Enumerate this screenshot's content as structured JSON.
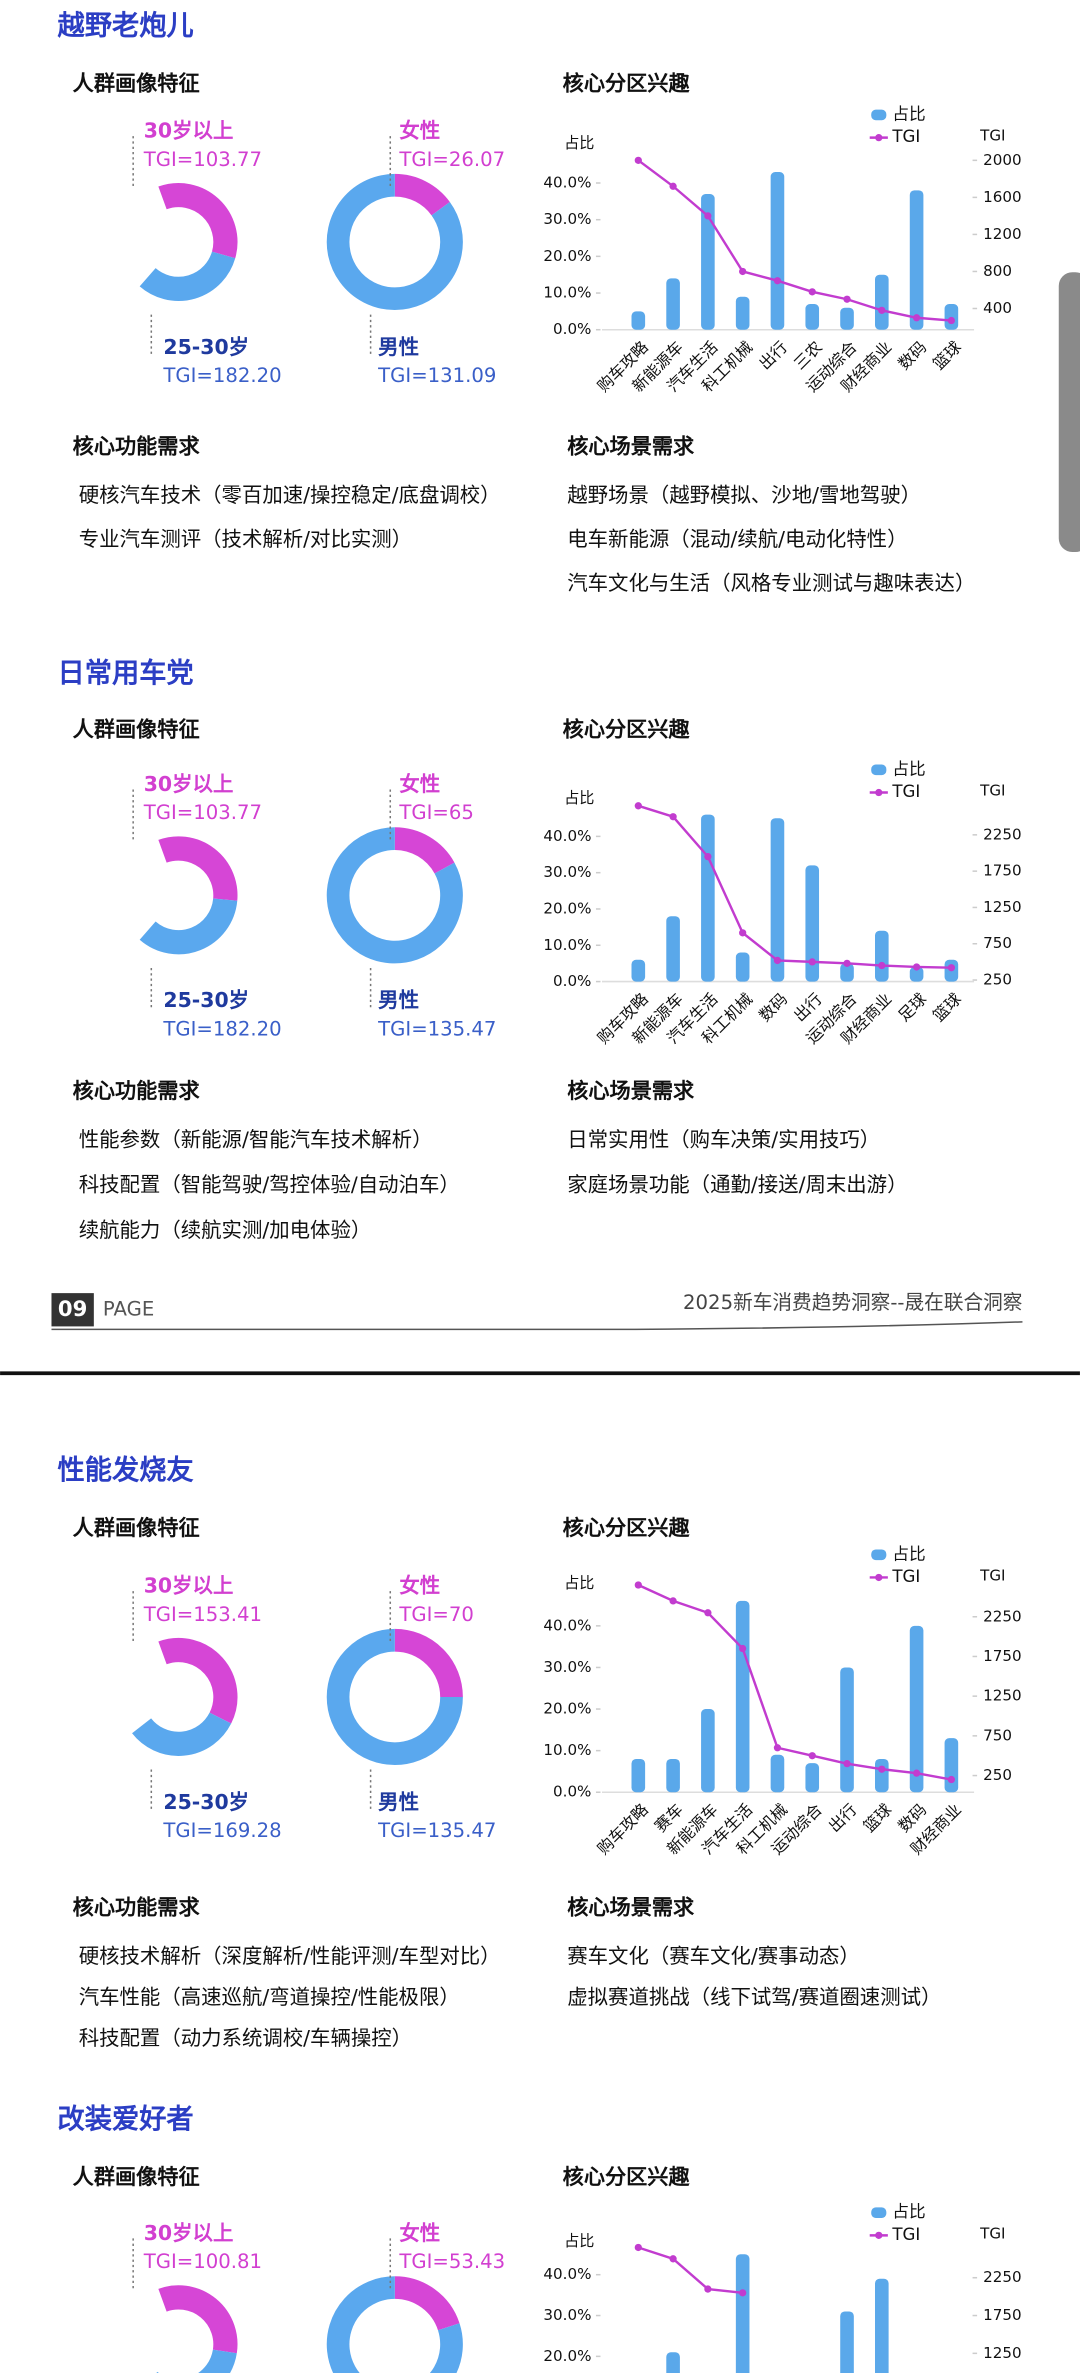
{
  "sections": [
    {
      "title": "越野老炮儿",
      "portrait_heading": "人群画像特征",
      "interest_heading": "核心分区兴趣",
      "function_heading": "核心功能需求",
      "function_items": [
        "硬核汽车技术（零百加速/操控稳定/底盘调校）",
        "专业汽车测评（技术解析/对比实测）"
      ],
      "scene_heading": "核心场景需求",
      "scene_items": [
        "越野场景（越野模拟、沙地/雪地驾驶）",
        "电车新能源（混动/续航/电动化特性）",
        "汽车文化与生活（风格专业测试与趣味表达）"
      ]
    },
    {
      "title": "日常用车党",
      "portrait_heading": "人群画像特征",
      "interest_heading": "核心分区兴趣",
      "function_heading": "核心功能需求",
      "function_items": [
        "性能参数（新能源/智能汽车技术解析）",
        "科技配置（智能驾驶/驾控体验/自动泊车）",
        "续航能力（续航实测/加电体验）"
      ],
      "scene_heading": "核心场景需求",
      "scene_items": [
        "日常实用性（购车决策/实用技巧）",
        "家庭场景功能（通勤/接送/周末出游）"
      ]
    },
    {
      "title": "性能发烧友",
      "portrait_heading": "人群画像特征",
      "interest_heading": "核心分区兴趣",
      "function_heading": "核心功能需求",
      "function_items": [
        "硬核技术解析（深度解析/性能评测/车型对比）",
        "汽车性能（高速巡航/弯道操控/性能极限）",
        "科技配置（动力系统调校/车辆操控）"
      ],
      "scene_heading": "核心场景需求",
      "scene_items": [
        "赛车文化（赛车文化/赛事动态）",
        "虚拟赛道挑战（线下试驾/赛道圈速测试）"
      ]
    },
    {
      "title": "改装爱好者",
      "portrait_heading": "人群画像特征",
      "interest_heading": "核心分区兴趣"
    }
  ],
  "footer": {
    "page_number": "09",
    "page_label": "PAGE",
    "report": "2025新车消费趋势洞察--晟在联合洞察"
  },
  "chart_data": [
    {
      "type": "donut",
      "categories": [
        "30岁以上",
        "25-30岁"
      ],
      "values": [
        35,
        32
      ],
      "colors": [
        "#d646d6",
        "#5aa8ee"
      ],
      "tgi_labels": [
        "TGI=103.77",
        "TGI=182.20"
      ]
    },
    {
      "type": "donut",
      "categories": [
        "女性",
        "男性"
      ],
      "values": [
        15,
        85
      ],
      "colors": [
        "#d646d6",
        "#5aa8ee"
      ],
      "tgi_labels": [
        "TGI=26.07",
        "TGI=131.09"
      ]
    },
    {
      "type": "bar_line",
      "y_label": "占比",
      "y2_label": "TGI",
      "categories": [
        "购车攻略",
        "新能源车",
        "汽车生活",
        "科工机械",
        "出行",
        "三农",
        "运动综合",
        "财经商业",
        "数码",
        "篮球"
      ],
      "series": [
        {
          "name": "占比",
          "color": "#5aa8ea",
          "values": [
            5,
            14,
            37,
            9,
            43,
            7,
            6,
            15,
            38,
            7
          ]
        },
        {
          "name": "TGI",
          "color": "#c23ccf",
          "axis": "y2",
          "values": [
            2000,
            1720,
            1400,
            800,
            700,
            580,
            500,
            380,
            300,
            270
          ]
        }
      ],
      "ylim": [
        0,
        48
      ],
      "yticks": [
        {
          "value": 0,
          "label": "0.0%"
        },
        {
          "value": 10,
          "label": "10.0%"
        },
        {
          "value": 20,
          "label": "20.0%"
        },
        {
          "value": 30,
          "label": "30.0%"
        },
        {
          "value": 40,
          "label": "40.0%"
        }
      ],
      "y2lim": [
        171,
        2072
      ],
      "y2ticks": [
        400,
        800,
        1200,
        1600,
        2000
      ]
    },
    {
      "type": "donut",
      "categories": [
        "30岁以上",
        "25-30岁"
      ],
      "values": [
        32,
        35
      ],
      "colors": [
        "#d646d6",
        "#5aa8ee"
      ],
      "tgi_labels": [
        "TGI=103.77",
        "TGI=182.20"
      ]
    },
    {
      "type": "donut",
      "categories": [
        "女性",
        "男性"
      ],
      "values": [
        17,
        83
      ],
      "colors": [
        "#d646d6",
        "#5aa8ee"
      ],
      "tgi_labels": [
        "TGI=65",
        "TGI=135.47"
      ]
    },
    {
      "type": "bar_line",
      "y_label": "占比",
      "y2_label": "TGI",
      "categories": [
        "购车攻略",
        "新能源车",
        "汽车生活",
        "科工机械",
        "数码",
        "出行",
        "运动综合",
        "财经商业",
        "足球",
        "篮球"
      ],
      "series": [
        {
          "name": "占比",
          "color": "#5aa8ea",
          "values": [
            6,
            18,
            46,
            8,
            45,
            32,
            5,
            14,
            4,
            6
          ]
        },
        {
          "name": "TGI",
          "color": "#c23ccf",
          "axis": "y2",
          "values": [
            2650,
            2500,
            1950,
            900,
            520,
            500,
            480,
            450,
            430,
            420
          ]
        }
      ],
      "ylim": [
        0,
        50
      ],
      "yticks": [
        {
          "value": 0,
          "label": "0.0%"
        },
        {
          "value": 10,
          "label": "10.0%"
        },
        {
          "value": 20,
          "label": "20.0%"
        },
        {
          "value": 30,
          "label": "30.0%"
        },
        {
          "value": 40,
          "label": "40.0%"
        }
      ],
      "y2lim": [
        229,
        2729
      ],
      "y2ticks": [
        250,
        750,
        1250,
        1750,
        2250
      ]
    },
    {
      "type": "donut",
      "categories": [
        "30岁以上",
        "25-30岁"
      ],
      "values": [
        38,
        32
      ],
      "colors": [
        "#d646d6",
        "#5aa8ee"
      ],
      "tgi_labels": [
        "TGI=153.41",
        "TGI=169.28"
      ]
    },
    {
      "type": "donut",
      "categories": [
        "女性",
        "男性"
      ],
      "values": [
        25,
        75
      ],
      "colors": [
        "#d646d6",
        "#5aa8ee"
      ],
      "tgi_labels": [
        "TGI=70",
        "TGI=135.47"
      ]
    },
    {
      "type": "bar_line",
      "y_label": "占比",
      "y2_label": "TGI",
      "categories": [
        "购车攻略",
        "赛车",
        "新能源车",
        "汽车生活",
        "科工机械",
        "运动综合",
        "出行",
        "篮球",
        "数码",
        "财经商业"
      ],
      "series": [
        {
          "name": "占比",
          "color": "#5aa8ea",
          "values": [
            8,
            8,
            20,
            46,
            9,
            7,
            30,
            8,
            40,
            13
          ]
        },
        {
          "name": "TGI",
          "color": "#c23ccf",
          "axis": "y2",
          "values": [
            2650,
            2450,
            2300,
            1850,
            600,
            500,
            400,
            330,
            280,
            200
          ]
        }
      ],
      "ylim": [
        0,
        52
      ],
      "yticks": [
        {
          "value": 0,
          "label": "0.0%"
        },
        {
          "value": 10,
          "label": "10.0%"
        },
        {
          "value": 20,
          "label": "20.0%"
        },
        {
          "value": 30,
          "label": "30.0%"
        },
        {
          "value": 40,
          "label": "40.0%"
        }
      ],
      "y2lim": [
        40,
        2764
      ],
      "y2ticks": [
        250,
        750,
        1250,
        1750,
        2250
      ]
    },
    {
      "type": "donut",
      "categories": [
        "30岁以上",
        null
      ],
      "values": [
        33,
        33
      ],
      "colors": [
        "#d646d6",
        "#5aa8ee"
      ],
      "tgi_labels": [
        "TGI=100.81",
        null
      ]
    },
    {
      "type": "donut",
      "categories": [
        "女性",
        null
      ],
      "values": [
        20,
        80
      ],
      "colors": [
        "#d646d6",
        "#5aa8ee"
      ],
      "tgi_labels": [
        "TGI=53.43",
        null
      ]
    },
    {
      "type": "bar_line",
      "y_label": "占比",
      "y2_label": "TGI",
      "categories": [
        null,
        null,
        null,
        null,
        null,
        null,
        null,
        null,
        null,
        null
      ],
      "series": [
        {
          "name": "占比",
          "color": "#5aa8ea",
          "values": [
            null,
            21,
            null,
            45,
            null,
            null,
            31,
            39,
            null,
            null
          ]
        },
        {
          "name": "TGI",
          "color": "#c23ccf",
          "axis": "y2",
          "values": [
            2650,
            2500,
            2100,
            2050,
            null,
            null,
            null,
            null,
            null,
            null
          ]
        }
      ],
      "ylim": [
        0,
        52
      ],
      "yticks": [
        {
          "value": 20,
          "label": "20.0%"
        },
        {
          "value": 30,
          "label": "30.0%"
        },
        {
          "value": 40,
          "label": "40.0%"
        }
      ],
      "y2lim": [
        130,
        2938
      ],
      "y2ticks": [
        1250,
        1750,
        2250
      ]
    }
  ]
}
